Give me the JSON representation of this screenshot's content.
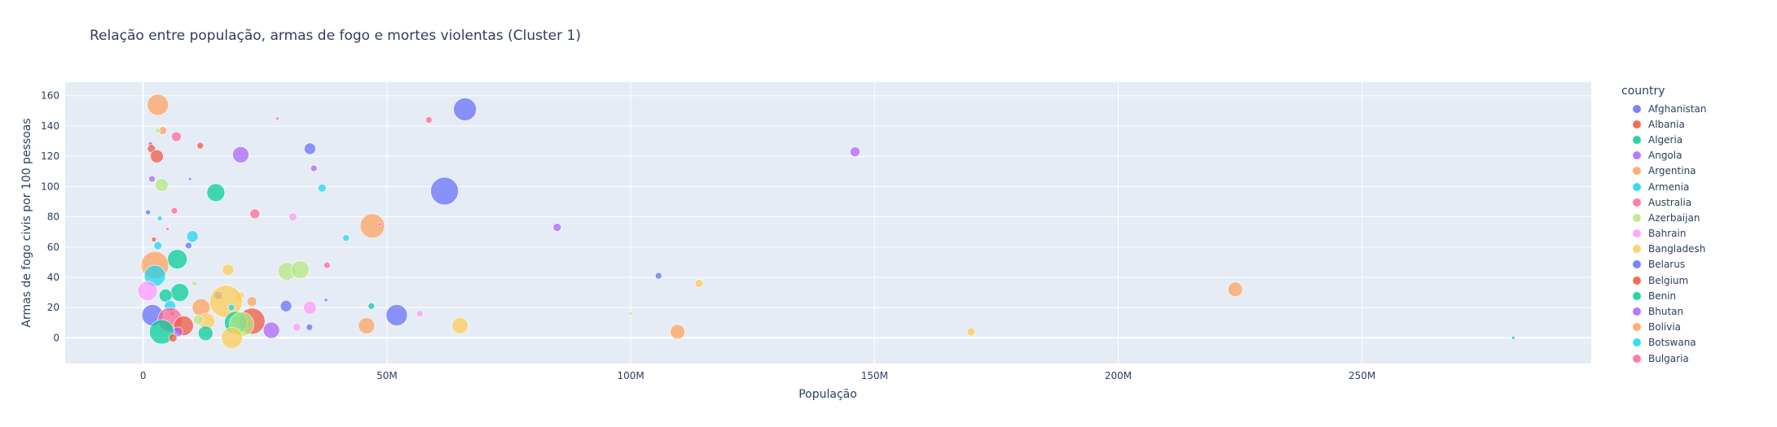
{
  "chart_data": {
    "type": "scatter",
    "title": "Relação entre população, armas de fogo e mortes violentas (Cluster 1)",
    "xlabel": "População",
    "ylabel": "Armas de fogo civis por 100 pessoas",
    "xlim": [
      -16000000,
      297000000
    ],
    "ylim": [
      -17,
      169
    ],
    "x_ticks": [
      0,
      50000000,
      100000000,
      150000000,
      200000000,
      250000000
    ],
    "x_tick_labels": [
      "0",
      "50M",
      "100M",
      "150M",
      "200M",
      "250M"
    ],
    "y_ticks": [
      0,
      20,
      40,
      60,
      80,
      100,
      120,
      140,
      160
    ],
    "y_tick_labels": [
      "0",
      "20",
      "40",
      "60",
      "80",
      "100",
      "120",
      "140",
      "160"
    ],
    "grid": true,
    "legend_title": "country",
    "legend_position": "right",
    "palette": [
      "#636efa",
      "#ef553b",
      "#00cc96",
      "#ab63fa",
      "#ffa15a",
      "#19d3f3",
      "#ff6692",
      "#b6e880",
      "#ff97ff",
      "#fecb52"
    ],
    "legend": [
      {
        "name": "Afghanistan",
        "color": "#636efa"
      },
      {
        "name": "Albania",
        "color": "#ef553b"
      },
      {
        "name": "Algeria",
        "color": "#00cc96"
      },
      {
        "name": "Angola",
        "color": "#ab63fa"
      },
      {
        "name": "Argentina",
        "color": "#ffa15a"
      },
      {
        "name": "Armenia",
        "color": "#19d3f3"
      },
      {
        "name": "Australia",
        "color": "#ff6692"
      },
      {
        "name": "Azerbaijan",
        "color": "#b6e880"
      },
      {
        "name": "Bahrain",
        "color": "#ff97ff"
      },
      {
        "name": "Bangladesh",
        "color": "#fecb52"
      },
      {
        "name": "Belarus",
        "color": "#636efa"
      },
      {
        "name": "Belgium",
        "color": "#ef553b"
      },
      {
        "name": "Benin",
        "color": "#00cc96"
      },
      {
        "name": "Bhutan",
        "color": "#ab63fa"
      },
      {
        "name": "Bolivia",
        "color": "#ffa15a"
      },
      {
        "name": "Botswana",
        "color": "#19d3f3"
      },
      {
        "name": "Bulgaria",
        "color": "#ff6692"
      }
    ],
    "points": [
      {
        "x": 66000000,
        "y": 151,
        "size": 14,
        "c": 0
      },
      {
        "x": 3000000,
        "y": 154,
        "size": 13,
        "c": 4
      },
      {
        "x": 27500000,
        "y": 145,
        "size": 2,
        "c": 6
      },
      {
        "x": 58600000,
        "y": 144,
        "size": 4,
        "c": 6
      },
      {
        "x": 4000000,
        "y": 137,
        "size": 5,
        "c": 4
      },
      {
        "x": 3000000,
        "y": 137,
        "size": 3,
        "c": 7
      },
      {
        "x": 6800000,
        "y": 133,
        "size": 6,
        "c": 6
      },
      {
        "x": 1500000,
        "y": 128,
        "size": 3,
        "c": 3
      },
      {
        "x": 11700000,
        "y": 127,
        "size": 4,
        "c": 1
      },
      {
        "x": 1700000,
        "y": 125,
        "size": 5,
        "c": 1
      },
      {
        "x": 34200000,
        "y": 125,
        "size": 7,
        "c": 0
      },
      {
        "x": 146000000,
        "y": 123,
        "size": 6,
        "c": 3
      },
      {
        "x": 20000000,
        "y": 121,
        "size": 10,
        "c": 3
      },
      {
        "x": 2800000,
        "y": 120,
        "size": 8,
        "c": 1
      },
      {
        "x": 35000000,
        "y": 112,
        "size": 4,
        "c": 3
      },
      {
        "x": 1800000,
        "y": 105,
        "size": 4,
        "c": 3
      },
      {
        "x": 9600000,
        "y": 105,
        "size": 2,
        "c": 3
      },
      {
        "x": 3800000,
        "y": 101,
        "size": 8,
        "c": 7
      },
      {
        "x": 36700000,
        "y": 99,
        "size": 5,
        "c": 5
      },
      {
        "x": 61800000,
        "y": 97,
        "size": 17,
        "c": 0
      },
      {
        "x": 14900000,
        "y": 96,
        "size": 11,
        "c": 2
      },
      {
        "x": 6400000,
        "y": 84,
        "size": 4,
        "c": 6
      },
      {
        "x": 1000000,
        "y": 83,
        "size": 3,
        "c": 0
      },
      {
        "x": 22900000,
        "y": 82,
        "size": 6,
        "c": 6
      },
      {
        "x": 30700000,
        "y": 80,
        "size": 5,
        "c": 8
      },
      {
        "x": 3400000,
        "y": 79,
        "size": 3,
        "c": 5
      },
      {
        "x": 47000000,
        "y": 74,
        "size": 15,
        "c": 4
      },
      {
        "x": 48500000,
        "y": 75,
        "size": 2,
        "c": 6
      },
      {
        "x": 84900000,
        "y": 73,
        "size": 5,
        "c": 3
      },
      {
        "x": 5000000,
        "y": 72,
        "size": 2,
        "c": 6
      },
      {
        "x": 10100000,
        "y": 67,
        "size": 7,
        "c": 5
      },
      {
        "x": 41600000,
        "y": 66,
        "size": 4,
        "c": 5
      },
      {
        "x": 2200000,
        "y": 65,
        "size": 3,
        "c": 1
      },
      {
        "x": 9300000,
        "y": 61,
        "size": 4,
        "c": 0
      },
      {
        "x": 3000000,
        "y": 61,
        "size": 5,
        "c": 5
      },
      {
        "x": 7000000,
        "y": 52,
        "size": 12,
        "c": 2
      },
      {
        "x": 2400000,
        "y": 48,
        "size": 17,
        "c": 4
      },
      {
        "x": 37700000,
        "y": 48,
        "size": 4,
        "c": 6
      },
      {
        "x": 17400000,
        "y": 45,
        "size": 7,
        "c": 9
      },
      {
        "x": 29500000,
        "y": 44,
        "size": 11,
        "c": 7
      },
      {
        "x": 32200000,
        "y": 45,
        "size": 11,
        "c": 7
      },
      {
        "x": 105700000,
        "y": 41,
        "size": 4,
        "c": 0
      },
      {
        "x": 2400000,
        "y": 41,
        "size": 13,
        "c": 5
      },
      {
        "x": 114000000,
        "y": 36,
        "size": 5,
        "c": 9
      },
      {
        "x": 10500000,
        "y": 36,
        "size": 3,
        "c": 7
      },
      {
        "x": 224000000,
        "y": 32,
        "size": 9,
        "c": 4
      },
      {
        "x": 900000,
        "y": 31,
        "size": 12,
        "c": 8
      },
      {
        "x": 7500000,
        "y": 30,
        "size": 11,
        "c": 2
      },
      {
        "x": 4600000,
        "y": 28,
        "size": 8,
        "c": 2
      },
      {
        "x": 15400000,
        "y": 28,
        "size": 5,
        "c": 0
      },
      {
        "x": 19900000,
        "y": 28,
        "size": 5,
        "c": 9
      },
      {
        "x": 37500000,
        "y": 25,
        "size": 2,
        "c": 0
      },
      {
        "x": 22300000,
        "y": 24,
        "size": 6,
        "c": 4
      },
      {
        "x": 17000000,
        "y": 24,
        "size": 20,
        "c": 9
      },
      {
        "x": 5500000,
        "y": 21,
        "size": 7,
        "c": 5
      },
      {
        "x": 29300000,
        "y": 21,
        "size": 7,
        "c": 0
      },
      {
        "x": 46800000,
        "y": 21,
        "size": 4,
        "c": 2
      },
      {
        "x": 34200000,
        "y": 20,
        "size": 8,
        "c": 8
      },
      {
        "x": 11900000,
        "y": 20,
        "size": 11,
        "c": 4
      },
      {
        "x": 18100000,
        "y": 20,
        "size": 4,
        "c": 5
      },
      {
        "x": 1900000,
        "y": 15,
        "size": 13,
        "c": 0
      },
      {
        "x": 52000000,
        "y": 15,
        "size": 13,
        "c": 0
      },
      {
        "x": 56700000,
        "y": 16,
        "size": 4,
        "c": 8
      },
      {
        "x": 6000000,
        "y": 16,
        "size": 3,
        "c": 6
      },
      {
        "x": 100000000,
        "y": 16,
        "size": 2,
        "c": 7
      },
      {
        "x": 5500000,
        "y": 12,
        "size": 15,
        "c": 6
      },
      {
        "x": 22300000,
        "y": 11,
        "size": 16,
        "c": 1
      },
      {
        "x": 19000000,
        "y": 10,
        "size": 14,
        "c": 2
      },
      {
        "x": 20200000,
        "y": 9,
        "size": 15,
        "c": 7
      },
      {
        "x": 13000000,
        "y": 11,
        "size": 10,
        "c": 9
      },
      {
        "x": 11300000,
        "y": 12,
        "size": 6,
        "c": 7
      },
      {
        "x": 8300000,
        "y": 8,
        "size": 12,
        "c": 1
      },
      {
        "x": 65000000,
        "y": 8,
        "size": 10,
        "c": 9
      },
      {
        "x": 31500000,
        "y": 7,
        "size": 5,
        "c": 8
      },
      {
        "x": 34100000,
        "y": 7,
        "size": 4,
        "c": 0
      },
      {
        "x": 45800000,
        "y": 8,
        "size": 10,
        "c": 4
      },
      {
        "x": 26300000,
        "y": 5,
        "size": 10,
        "c": 3
      },
      {
        "x": 7100000,
        "y": 4,
        "size": 6,
        "c": 3
      },
      {
        "x": 3800000,
        "y": 4,
        "size": 15,
        "c": 2
      },
      {
        "x": 109600000,
        "y": 4,
        "size": 9,
        "c": 4
      },
      {
        "x": 12800000,
        "y": 3,
        "size": 9,
        "c": 2
      },
      {
        "x": 169800000,
        "y": 4,
        "size": 5,
        "c": 9
      },
      {
        "x": 6100000,
        "y": 0,
        "size": 5,
        "c": 1
      },
      {
        "x": 18200000,
        "y": 0,
        "size": 13,
        "c": 9
      },
      {
        "x": 281000000,
        "y": 0,
        "size": 2,
        "c": 2
      }
    ]
  }
}
